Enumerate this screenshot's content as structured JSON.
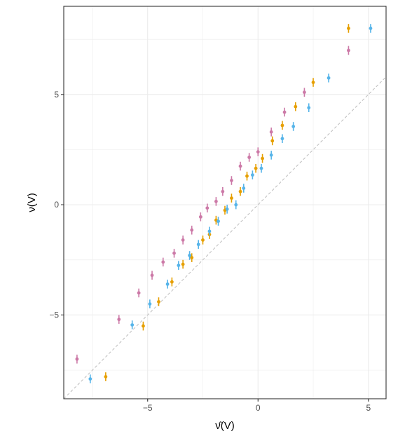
{
  "chart_data": {
    "type": "scatter",
    "xlabel": "ν̂(V)",
    "ylabel": "ν(V)",
    "xlim": [
      -8.8,
      5.8
    ],
    "ylim": [
      -8.8,
      9.0
    ],
    "x_ticks": [
      -5,
      0,
      5
    ],
    "x_tick_labels": [
      "−5",
      "0",
      "5"
    ],
    "y_ticks": [
      -5,
      0,
      5
    ],
    "y_tick_labels": [
      "−5",
      "0",
      "5"
    ],
    "grid": true,
    "reference_line": {
      "type": "identity",
      "style": "dashed",
      "color": "#bdbdbd"
    },
    "error_bar_half_height": 0.2,
    "series": [
      {
        "color": "#CC79A7",
        "points": [
          {
            "x": -8.2,
            "y": -7.0
          },
          {
            "x": -6.3,
            "y": -5.2
          },
          {
            "x": -5.4,
            "y": -4.0
          },
          {
            "x": -4.8,
            "y": -3.2
          },
          {
            "x": -4.3,
            "y": -2.6
          },
          {
            "x": -3.8,
            "y": -2.2
          },
          {
            "x": -3.4,
            "y": -1.6
          },
          {
            "x": -3.0,
            "y": -1.15
          },
          {
            "x": -2.6,
            "y": -0.55
          },
          {
            "x": -2.3,
            "y": -0.15
          },
          {
            "x": -1.9,
            "y": 0.15
          },
          {
            "x": -1.6,
            "y": 0.6
          },
          {
            "x": -1.2,
            "y": 1.1
          },
          {
            "x": -0.8,
            "y": 1.75
          },
          {
            "x": -0.4,
            "y": 2.15
          },
          {
            "x": 0.0,
            "y": 2.4
          },
          {
            "x": 0.6,
            "y": 3.3
          },
          {
            "x": 1.2,
            "y": 4.2
          },
          {
            "x": 2.1,
            "y": 5.1
          },
          {
            "x": 4.1,
            "y": 7.0
          }
        ]
      },
      {
        "color": "#E69F00",
        "points": [
          {
            "x": -6.9,
            "y": -7.8
          },
          {
            "x": -5.2,
            "y": -5.5
          },
          {
            "x": -4.5,
            "y": -4.4
          },
          {
            "x": -3.9,
            "y": -3.5
          },
          {
            "x": -3.4,
            "y": -2.7
          },
          {
            "x": -3.0,
            "y": -2.4
          },
          {
            "x": -2.5,
            "y": -1.6
          },
          {
            "x": -2.2,
            "y": -1.35
          },
          {
            "x": -1.9,
            "y": -0.7
          },
          {
            "x": -1.5,
            "y": -0.25
          },
          {
            "x": -1.2,
            "y": 0.3
          },
          {
            "x": -0.8,
            "y": 0.6
          },
          {
            "x": -0.5,
            "y": 1.3
          },
          {
            "x": -0.1,
            "y": 1.65
          },
          {
            "x": 0.2,
            "y": 2.1
          },
          {
            "x": 0.65,
            "y": 2.9
          },
          {
            "x": 1.1,
            "y": 3.6
          },
          {
            "x": 1.7,
            "y": 4.45
          },
          {
            "x": 2.5,
            "y": 5.55
          },
          {
            "x": 4.1,
            "y": 8.0
          }
        ]
      },
      {
        "color": "#56B4E9",
        "points": [
          {
            "x": -7.6,
            "y": -7.9
          },
          {
            "x": -5.7,
            "y": -5.45
          },
          {
            "x": -4.9,
            "y": -4.5
          },
          {
            "x": -4.1,
            "y": -3.6
          },
          {
            "x": -3.6,
            "y": -2.75
          },
          {
            "x": -3.1,
            "y": -2.3
          },
          {
            "x": -2.7,
            "y": -1.8
          },
          {
            "x": -2.2,
            "y": -1.2
          },
          {
            "x": -1.8,
            "y": -0.75
          },
          {
            "x": -1.4,
            "y": -0.2
          },
          {
            "x": -1.0,
            "y": 0.0
          },
          {
            "x": -0.65,
            "y": 0.75
          },
          {
            "x": -0.25,
            "y": 1.35
          },
          {
            "x": 0.15,
            "y": 1.65
          },
          {
            "x": 0.6,
            "y": 2.25
          },
          {
            "x": 1.1,
            "y": 3.0
          },
          {
            "x": 1.6,
            "y": 3.55
          },
          {
            "x": 2.3,
            "y": 4.4
          },
          {
            "x": 3.2,
            "y": 5.75
          },
          {
            "x": 5.1,
            "y": 8.0
          }
        ]
      }
    ]
  }
}
